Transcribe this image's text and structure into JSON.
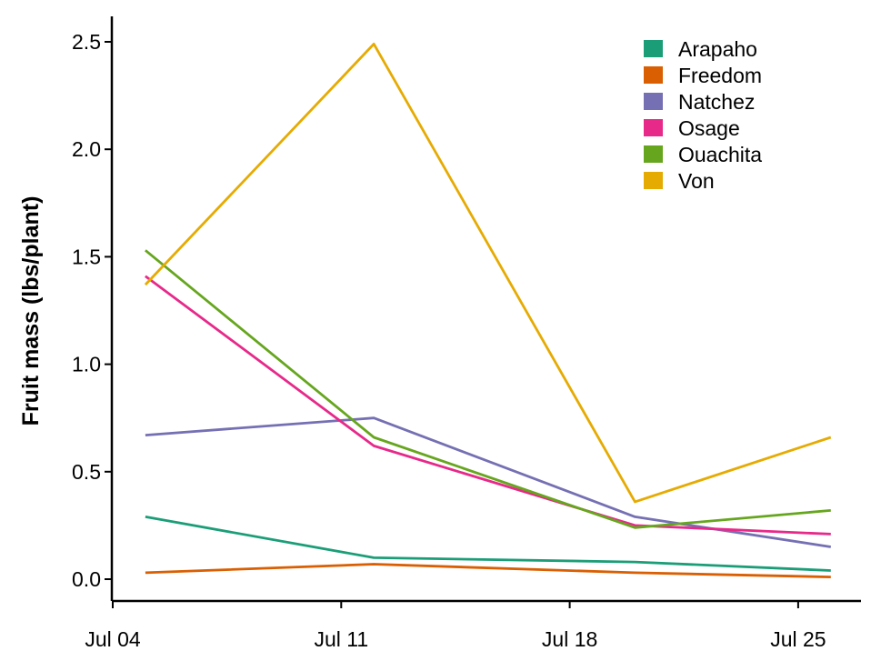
{
  "chart_data": {
    "type": "line",
    "title": "",
    "xlabel": "",
    "ylabel": "Fruit mass (lbs/plant)",
    "x": [
      "2021-07-05",
      "2021-07-12",
      "2021-07-20",
      "2021-07-26"
    ],
    "x_ticks": [
      "Jul 04",
      "Jul 11",
      "Jul 18",
      "Jul 25"
    ],
    "y_ticks": [
      "0.0",
      "0.5",
      "1.0",
      "1.5",
      "2.0",
      "2.5"
    ],
    "ylim": [
      -0.05,
      2.65
    ],
    "grid": false,
    "legend_position": "top-right",
    "series": [
      {
        "name": "Arapaho",
        "color": "#1b9e77",
        "values": [
          0.29,
          0.1,
          0.08,
          0.04
        ]
      },
      {
        "name": "Freedom",
        "color": "#d95f02",
        "values": [
          0.03,
          0.07,
          0.03,
          0.01
        ]
      },
      {
        "name": "Natchez",
        "color": "#7570b3",
        "values": [
          0.67,
          0.75,
          0.29,
          0.15
        ]
      },
      {
        "name": "Osage",
        "color": "#e7298a",
        "values": [
          1.41,
          0.62,
          0.25,
          0.21
        ]
      },
      {
        "name": "Ouachita",
        "color": "#66a61e",
        "values": [
          1.53,
          0.66,
          0.24,
          0.32
        ]
      },
      {
        "name": "Von",
        "color": "#e6ab02",
        "values": [
          1.37,
          2.49,
          0.36,
          0.66
        ]
      }
    ]
  }
}
